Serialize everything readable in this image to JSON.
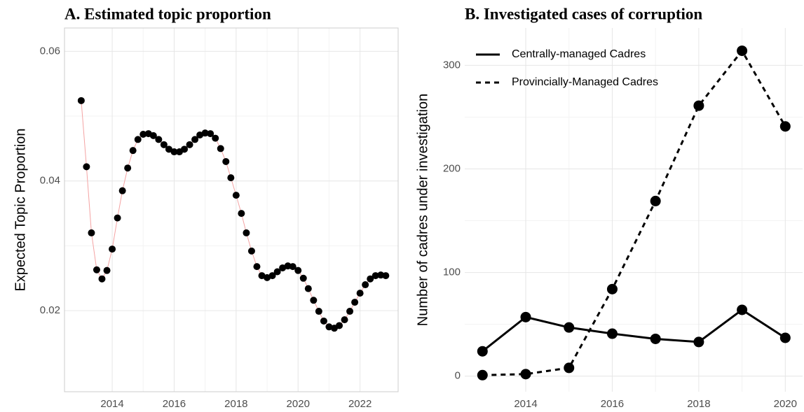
{
  "chart_data": [
    {
      "type": "scatter",
      "title": "A. Estimated topic proportion",
      "ylabel": "Expected Topic Proportion",
      "x": [
        2013.0,
        2013.17,
        2013.33,
        2013.5,
        2013.67,
        2013.83,
        2014.0,
        2014.17,
        2014.33,
        2014.5,
        2014.67,
        2014.83,
        2015.0,
        2015.17,
        2015.33,
        2015.5,
        2015.67,
        2015.83,
        2016.0,
        2016.17,
        2016.33,
        2016.5,
        2016.67,
        2016.83,
        2017.0,
        2017.17,
        2017.33,
        2017.5,
        2017.67,
        2017.83,
        2018.0,
        2018.17,
        2018.33,
        2018.5,
        2018.67,
        2018.83,
        2019.0,
        2019.17,
        2019.33,
        2019.5,
        2019.67,
        2019.83,
        2020.0,
        2020.17,
        2020.33,
        2020.5,
        2020.67,
        2020.83,
        2021.0,
        2021.17,
        2021.33,
        2021.5,
        2021.67,
        2021.83,
        2022.0,
        2022.17,
        2022.33,
        2022.5,
        2022.67,
        2022.83
      ],
      "values": [
        0.0524,
        0.0422,
        0.032,
        0.0263,
        0.0249,
        0.0262,
        0.0295,
        0.0343,
        0.0385,
        0.042,
        0.0447,
        0.0464,
        0.0472,
        0.0473,
        0.047,
        0.0464,
        0.0456,
        0.0449,
        0.0445,
        0.0445,
        0.0449,
        0.0456,
        0.0464,
        0.0471,
        0.0474,
        0.0473,
        0.0466,
        0.045,
        0.043,
        0.0405,
        0.0378,
        0.035,
        0.032,
        0.0292,
        0.0268,
        0.0254,
        0.0251,
        0.0254,
        0.026,
        0.0266,
        0.0269,
        0.0268,
        0.0262,
        0.025,
        0.0234,
        0.0216,
        0.0199,
        0.0184,
        0.0175,
        0.0173,
        0.0177,
        0.0186,
        0.0199,
        0.0213,
        0.0227,
        0.024,
        0.0249,
        0.0254,
        0.0255,
        0.0254
      ],
      "color": "#000000",
      "line_color": "#f4a3a3",
      "xlim": [
        2012.46,
        2023.23
      ],
      "xticks": [
        2014,
        2016,
        2018,
        2020,
        2022
      ],
      "ylim": [
        0.0075,
        0.0636
      ],
      "yticks": [
        0.02,
        0.04,
        0.06
      ],
      "grid": true,
      "border": true
    },
    {
      "type": "line",
      "title": "B. Investigated cases of corruption",
      "ylabel": "Number of cadres under investigation",
      "x": [
        2013,
        2014,
        2015,
        2016,
        2017,
        2018,
        2019,
        2020
      ],
      "series": [
        {
          "name": "Centrally-managed Cadres",
          "color": "#000000",
          "linestyle": "solid",
          "values": [
            24,
            57,
            47,
            41,
            36,
            33,
            64,
            37
          ]
        },
        {
          "name": "Provincially-Managed Cadres",
          "color": "#000000",
          "linestyle": "dashed",
          "values": [
            1,
            2,
            8,
            84,
            169,
            261,
            314,
            241
          ]
        }
      ],
      "xlim": [
        2012.59,
        2020.4
      ],
      "xticks": [
        2014,
        2016,
        2018,
        2020
      ],
      "ylim": [
        -15,
        336
      ],
      "yticks": [
        0,
        100,
        200,
        300
      ],
      "grid": true,
      "border": false,
      "legend": "top-left"
    }
  ]
}
